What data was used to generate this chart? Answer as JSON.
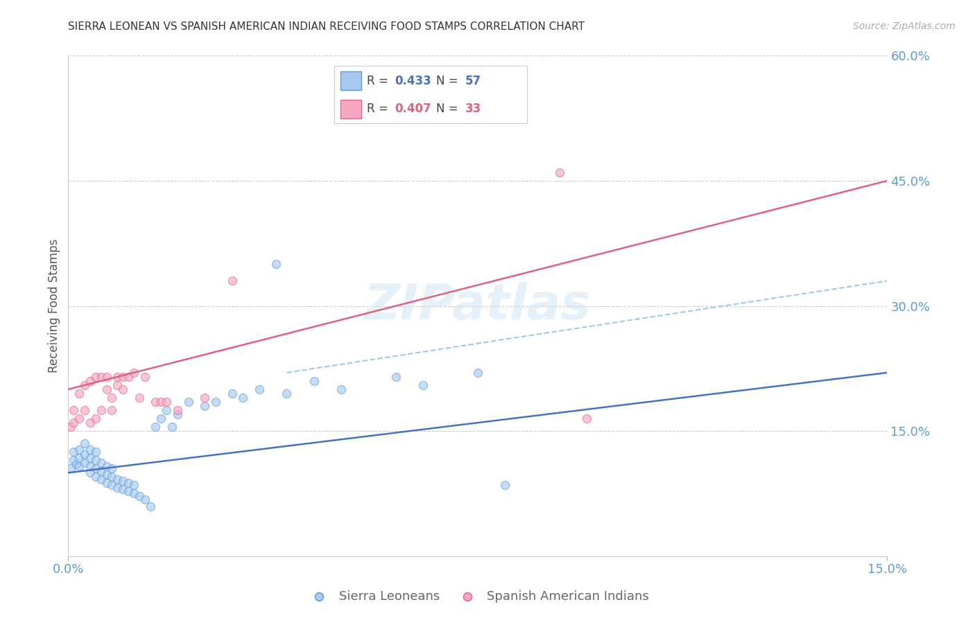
{
  "title": "SIERRA LEONEAN VS SPANISH AMERICAN INDIAN RECEIVING FOOD STAMPS CORRELATION CHART",
  "source": "Source: ZipAtlas.com",
  "ylabel": "Receiving Food Stamps",
  "xlim": [
    0.0,
    0.15
  ],
  "ylim": [
    0.0,
    0.6
  ],
  "ytick_vals": [
    0.15,
    0.3,
    0.45,
    0.6
  ],
  "ytick_color": "#5b9bd5",
  "xtick_color": "#5b9bd5",
  "background_color": "#ffffff",
  "watermark": "ZIPatlas",
  "sierra_x": [
    0.0005,
    0.001,
    0.001,
    0.0015,
    0.002,
    0.002,
    0.002,
    0.003,
    0.003,
    0.003,
    0.004,
    0.004,
    0.004,
    0.004,
    0.005,
    0.005,
    0.005,
    0.005,
    0.006,
    0.006,
    0.006,
    0.007,
    0.007,
    0.007,
    0.008,
    0.008,
    0.008,
    0.009,
    0.009,
    0.01,
    0.01,
    0.011,
    0.011,
    0.012,
    0.012,
    0.013,
    0.014,
    0.015,
    0.016,
    0.017,
    0.018,
    0.019,
    0.02,
    0.022,
    0.025,
    0.027,
    0.03,
    0.032,
    0.035,
    0.038,
    0.04,
    0.045,
    0.05,
    0.06,
    0.065,
    0.075,
    0.08
  ],
  "sierra_y": [
    0.105,
    0.115,
    0.125,
    0.11,
    0.108,
    0.118,
    0.128,
    0.112,
    0.122,
    0.135,
    0.1,
    0.108,
    0.118,
    0.128,
    0.095,
    0.105,
    0.115,
    0.125,
    0.092,
    0.102,
    0.112,
    0.088,
    0.098,
    0.108,
    0.085,
    0.095,
    0.105,
    0.082,
    0.092,
    0.08,
    0.09,
    0.078,
    0.088,
    0.075,
    0.085,
    0.072,
    0.068,
    0.06,
    0.155,
    0.165,
    0.175,
    0.155,
    0.17,
    0.185,
    0.18,
    0.185,
    0.195,
    0.19,
    0.2,
    0.35,
    0.195,
    0.21,
    0.2,
    0.215,
    0.205,
    0.22,
    0.085
  ],
  "spanish_x": [
    0.0005,
    0.001,
    0.001,
    0.002,
    0.002,
    0.003,
    0.003,
    0.004,
    0.004,
    0.005,
    0.005,
    0.006,
    0.006,
    0.007,
    0.007,
    0.008,
    0.008,
    0.009,
    0.009,
    0.01,
    0.01,
    0.011,
    0.012,
    0.013,
    0.014,
    0.016,
    0.017,
    0.018,
    0.02,
    0.025,
    0.03,
    0.09,
    0.095
  ],
  "spanish_y": [
    0.155,
    0.16,
    0.175,
    0.165,
    0.195,
    0.175,
    0.205,
    0.16,
    0.21,
    0.165,
    0.215,
    0.175,
    0.215,
    0.2,
    0.215,
    0.175,
    0.19,
    0.205,
    0.215,
    0.2,
    0.215,
    0.215,
    0.22,
    0.19,
    0.215,
    0.185,
    0.185,
    0.185,
    0.175,
    0.19,
    0.33,
    0.46,
    0.165
  ],
  "sierra_color": "#a8c8f0",
  "sierra_edge": "#5b9bd5",
  "spanish_color": "#f7a8c0",
  "spanish_edge": "#e06080",
  "marker_size": 75,
  "alpha": 0.65,
  "sierra_line_color": "#4472c4",
  "spanish_line_color": "#e06080",
  "dashed_line_color": "#a0c8e8",
  "legend_R1": "0.433",
  "legend_N1": "57",
  "legend_R2": "0.407",
  "legend_N2": "33",
  "legend_color1": "#4472c4",
  "legend_color2": "#e06080",
  "legend_patch1": "#a8c8f0",
  "legend_patch2": "#f7a8c0",
  "legend_patch1_edge": "#5b9bd5",
  "legend_patch2_edge": "#e06080"
}
